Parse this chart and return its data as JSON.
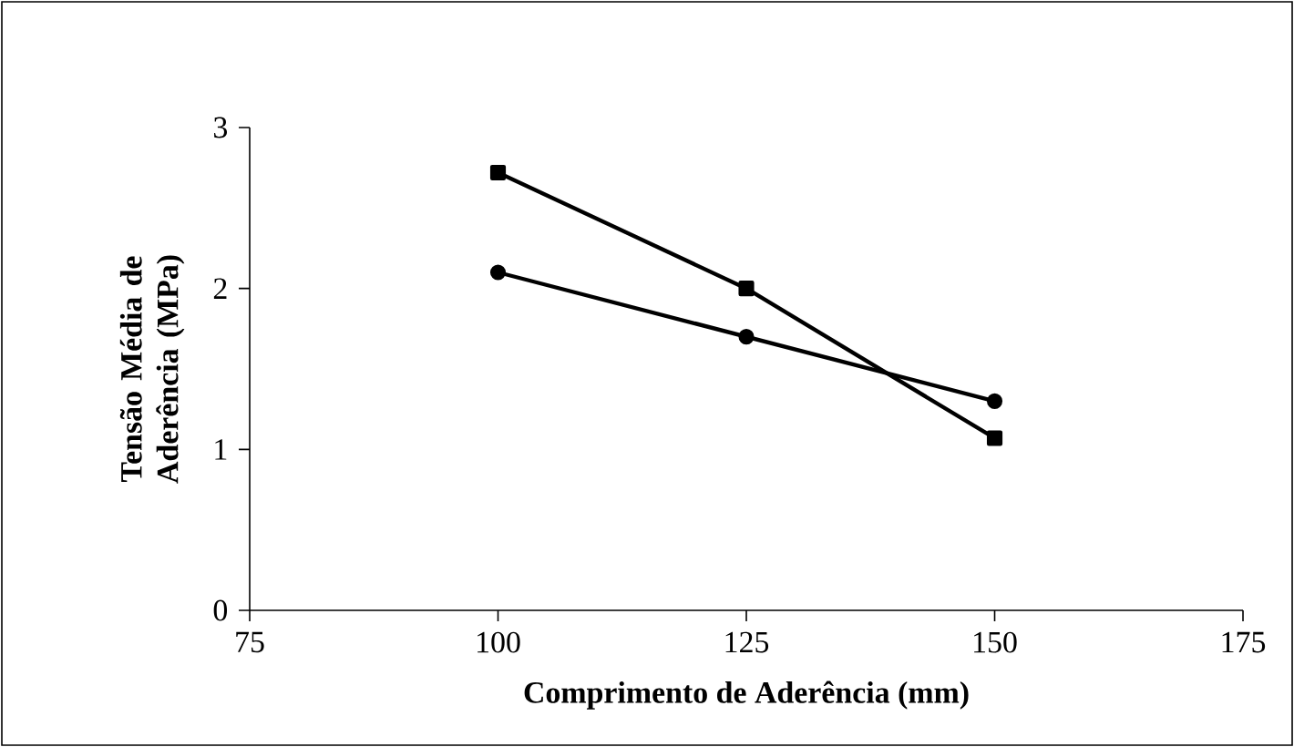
{
  "chart_data": {
    "type": "line",
    "xlabel": "Comprimento de Aderência (mm)",
    "ylabel": "Tensão Média de Aderência  (MPa)",
    "x": [
      100,
      125,
      150
    ],
    "series": [
      {
        "color": "#000000",
        "marker": "square",
        "values": [
          2.72,
          2.0,
          1.07
        ]
      },
      {
        "color": "#000000",
        "marker": "circle",
        "values": [
          2.1,
          1.7,
          1.3
        ]
      }
    ],
    "xlim": [
      75,
      175
    ],
    "xticks": [
      75,
      100,
      125,
      150,
      175
    ],
    "ylim": [
      0,
      3
    ],
    "yticks": [
      0,
      1,
      2,
      3
    ],
    "line_style": "solid"
  }
}
